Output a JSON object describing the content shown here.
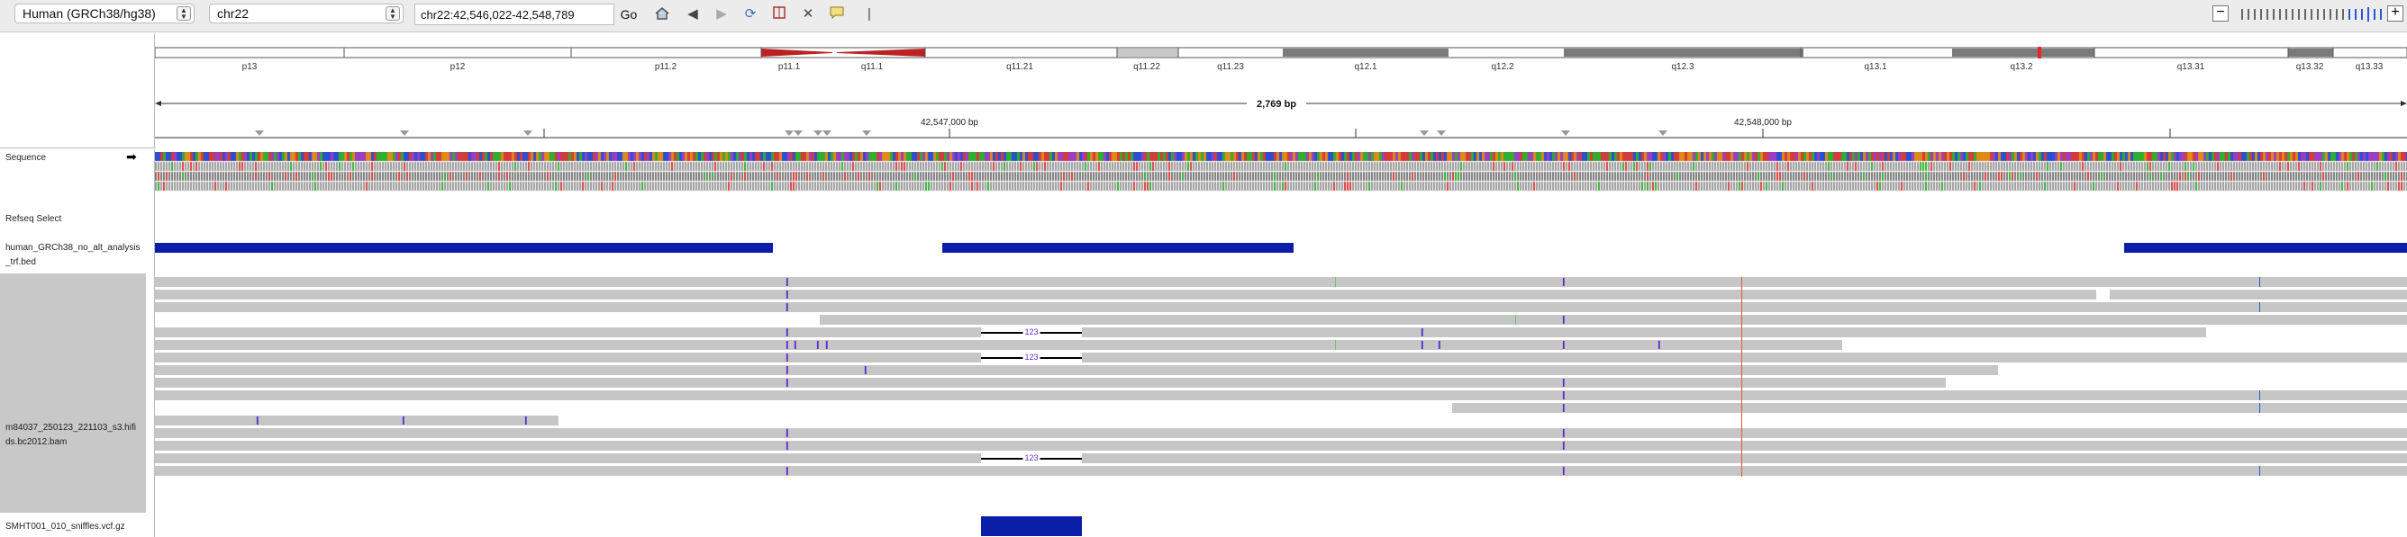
{
  "toolbar": {
    "genome": "Human (GRCh38/hg38)",
    "chromosome": "chr22",
    "locus": "chr22:42,546,022-42,548,789",
    "go_label": "Go"
  },
  "ideogram": {
    "bands": [
      "p13",
      "p12",
      "p11.2",
      "p11.1",
      "q11.1",
      "q11.21",
      "q11.22",
      "q11.23",
      "q12.1",
      "q12.2",
      "q12.3",
      "q13.1",
      "q13.2",
      "q13.31",
      "q13.32",
      "q13.33"
    ]
  },
  "ruler": {
    "span_label": "2,769 bp",
    "tick1": "42,547,000 bp",
    "tick2": "42,548,000 bp"
  },
  "tracks": {
    "sequence": "Sequence",
    "refseq": "Refseq Select",
    "trf_line1": "human_GRCh38_no_alt_analysis",
    "trf_line2": "_trf.bed",
    "bam_line1": "m84037_250123_221103_s3.hifi",
    "bam_line2": "ds.bc2012.bam",
    "vcf": "SMHT001_010_sniffles.vcf.gz"
  },
  "deletion_label": "123",
  "colors": {
    "feature_blue": "#0a1ea8",
    "insertion_purple": "#5b2fd1",
    "read_gray": "#c6c6c6",
    "mismatch_red": "#e53"
  }
}
